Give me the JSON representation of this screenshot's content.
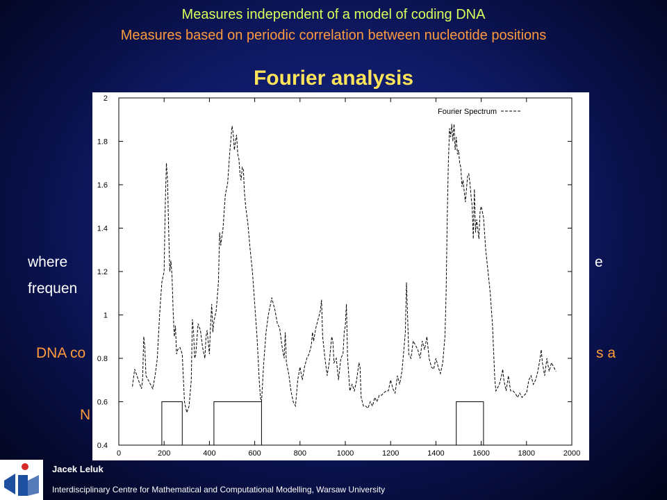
{
  "slide": {
    "header_line1": "Measures independent of a model of coding DNA",
    "header_line2": "Measures based on periodic correlation between nucleotide positions",
    "title": "Fourier analysis",
    "partial_text_1": "where ",
    "partial_text_1_suffix": "e",
    "partial_text_2": "frequen",
    "partial_text_3": "DNA co",
    "partial_text_3_suffix": "s a",
    "partial_text_4": "N",
    "footer_name": "Jacek Leluk",
    "footer_institution": "Interdisciplinary Centre for Mathematical and Computational Modelling, Warsaw University"
  },
  "colors": {
    "header_line1": "#d8ff5a",
    "header_line2": "#ff9a3c",
    "title": "#ffe45a",
    "logo_blue": "#1e4fa0",
    "logo_red": "#d62828"
  },
  "chart_data": {
    "type": "line",
    "title": "",
    "xlabel": "",
    "ylabel": "",
    "xlim": [
      0,
      2000
    ],
    "ylim": [
      0.4,
      2
    ],
    "x_ticks": [
      0,
      200,
      400,
      600,
      800,
      1000,
      1200,
      1400,
      1600,
      1800,
      2000
    ],
    "y_ticks": [
      0.4,
      0.6,
      0.8,
      1,
      1.2,
      1.4,
      1.6,
      1.8,
      2
    ],
    "legend": "top-right",
    "series": [
      {
        "name": "Fourier Spectrum",
        "style": "dashed",
        "points": [
          [
            60,
            0.67
          ],
          [
            70,
            0.75
          ],
          [
            80,
            0.72
          ],
          [
            90,
            0.69
          ],
          [
            100,
            0.66
          ],
          [
            105,
            0.7
          ],
          [
            110,
            0.9
          ],
          [
            115,
            0.85
          ],
          [
            120,
            0.72
          ],
          [
            130,
            0.7
          ],
          [
            140,
            0.68
          ],
          [
            150,
            0.66
          ],
          [
            160,
            0.72
          ],
          [
            170,
            0.8
          ],
          [
            180,
            1.0
          ],
          [
            190,
            1.15
          ],
          [
            200,
            1.2
          ],
          [
            205,
            1.5
          ],
          [
            210,
            1.7
          ],
          [
            215,
            1.62
          ],
          [
            220,
            1.4
          ],
          [
            225,
            1.2
          ],
          [
            230,
            1.25
          ],
          [
            235,
            1.18
          ],
          [
            240,
            1.02
          ],
          [
            245,
            0.9
          ],
          [
            250,
            0.95
          ],
          [
            255,
            0.82
          ],
          [
            260,
            0.84
          ],
          [
            270,
            0.85
          ],
          [
            280,
            0.82
          ],
          [
            290,
            0.6
          ],
          [
            300,
            0.55
          ],
          [
            310,
            0.58
          ],
          [
            320,
            0.7
          ],
          [
            325,
            0.98
          ],
          [
            330,
            0.92
          ],
          [
            335,
            0.8
          ],
          [
            340,
            0.82
          ],
          [
            350,
            0.96
          ],
          [
            360,
            0.93
          ],
          [
            370,
            0.85
          ],
          [
            380,
            0.8
          ],
          [
            385,
            0.9
          ],
          [
            390,
            0.93
          ],
          [
            395,
            0.87
          ],
          [
            400,
            0.82
          ],
          [
            405,
            0.95
          ],
          [
            410,
            1.05
          ],
          [
            415,
            0.92
          ],
          [
            420,
            0.97
          ],
          [
            430,
            1.02
          ],
          [
            440,
            1.15
          ],
          [
            445,
            1.38
          ],
          [
            450,
            1.32
          ],
          [
            455,
            1.36
          ],
          [
            460,
            1.4
          ],
          [
            470,
            1.55
          ],
          [
            475,
            1.58
          ],
          [
            480,
            1.6
          ],
          [
            490,
            1.75
          ],
          [
            500,
            1.87
          ],
          [
            505,
            1.84
          ],
          [
            510,
            1.76
          ],
          [
            515,
            1.8
          ],
          [
            520,
            1.83
          ],
          [
            525,
            1.74
          ],
          [
            530,
            1.72
          ],
          [
            535,
            1.65
          ],
          [
            540,
            1.62
          ],
          [
            545,
            1.68
          ],
          [
            550,
            1.67
          ],
          [
            555,
            1.56
          ],
          [
            560,
            1.5
          ],
          [
            570,
            1.42
          ],
          [
            580,
            1.3
          ],
          [
            590,
            1.2
          ],
          [
            600,
            1.05
          ],
          [
            610,
            0.9
          ],
          [
            620,
            0.7
          ],
          [
            625,
            0.62
          ],
          [
            630,
            0.6
          ],
          [
            640,
            0.78
          ],
          [
            650,
            0.92
          ],
          [
            660,
            1.0
          ],
          [
            670,
            1.05
          ],
          [
            675,
            1.08
          ],
          [
            680,
            1.06
          ],
          [
            690,
            1.02
          ],
          [
            700,
            0.96
          ],
          [
            710,
            0.94
          ],
          [
            720,
            0.86
          ],
          [
            730,
            0.8
          ],
          [
            735,
            0.92
          ],
          [
            740,
            0.78
          ],
          [
            750,
            0.73
          ],
          [
            760,
            0.65
          ],
          [
            770,
            0.6
          ],
          [
            780,
            0.58
          ],
          [
            790,
            0.7
          ],
          [
            800,
            0.76
          ],
          [
            810,
            0.7
          ],
          [
            820,
            0.76
          ],
          [
            830,
            0.8
          ],
          [
            840,
            0.82
          ],
          [
            850,
            0.86
          ],
          [
            855,
            0.92
          ],
          [
            860,
            0.88
          ],
          [
            870,
            0.94
          ],
          [
            880,
            0.98
          ],
          [
            890,
            1.02
          ],
          [
            895,
            1.07
          ],
          [
            900,
            0.9
          ],
          [
            910,
            0.8
          ],
          [
            920,
            0.72
          ],
          [
            930,
            0.79
          ],
          [
            940,
            0.9
          ],
          [
            945,
            0.88
          ],
          [
            950,
            0.78
          ],
          [
            960,
            0.8
          ],
          [
            970,
            0.7
          ],
          [
            980,
            0.8
          ],
          [
            990,
            0.82
          ],
          [
            995,
            0.92
          ],
          [
            1000,
            0.95
          ],
          [
            1005,
            1.05
          ],
          [
            1010,
            0.8
          ],
          [
            1020,
            0.65
          ],
          [
            1030,
            0.68
          ],
          [
            1040,
            0.65
          ],
          [
            1050,
            0.7
          ],
          [
            1060,
            0.78
          ],
          [
            1065,
            0.76
          ],
          [
            1070,
            0.62
          ],
          [
            1080,
            0.58
          ],
          [
            1090,
            0.58
          ],
          [
            1100,
            0.57
          ],
          [
            1110,
            0.6
          ],
          [
            1120,
            0.58
          ],
          [
            1130,
            0.62
          ],
          [
            1140,
            0.6
          ],
          [
            1150,
            0.63
          ],
          [
            1160,
            0.63
          ],
          [
            1170,
            0.64
          ],
          [
            1180,
            0.65
          ],
          [
            1190,
            0.65
          ],
          [
            1200,
            0.7
          ],
          [
            1210,
            0.66
          ],
          [
            1220,
            0.64
          ],
          [
            1230,
            0.72
          ],
          [
            1240,
            0.68
          ],
          [
            1250,
            0.74
          ],
          [
            1260,
            0.86
          ],
          [
            1265,
            0.92
          ],
          [
            1270,
            1.15
          ],
          [
            1275,
            1.0
          ],
          [
            1280,
            0.82
          ],
          [
            1290,
            0.8
          ],
          [
            1300,
            0.88
          ],
          [
            1310,
            0.86
          ],
          [
            1320,
            0.84
          ],
          [
            1330,
            0.8
          ],
          [
            1340,
            0.88
          ],
          [
            1350,
            0.84
          ],
          [
            1360,
            0.9
          ],
          [
            1370,
            0.8
          ],
          [
            1380,
            0.76
          ],
          [
            1390,
            0.75
          ],
          [
            1400,
            0.8
          ],
          [
            1410,
            0.76
          ],
          [
            1420,
            0.73
          ],
          [
            1430,
            0.78
          ],
          [
            1440,
            0.9
          ],
          [
            1445,
            1.1
          ],
          [
            1450,
            1.45
          ],
          [
            1455,
            1.7
          ],
          [
            1460,
            1.86
          ],
          [
            1465,
            1.82
          ],
          [
            1470,
            1.88
          ],
          [
            1475,
            1.8
          ],
          [
            1480,
            1.88
          ],
          [
            1485,
            1.76
          ],
          [
            1490,
            1.82
          ],
          [
            1495,
            1.74
          ],
          [
            1500,
            1.76
          ],
          [
            1505,
            1.7
          ],
          [
            1510,
            1.68
          ],
          [
            1515,
            1.59
          ],
          [
            1520,
            1.62
          ],
          [
            1530,
            1.52
          ],
          [
            1540,
            1.64
          ],
          [
            1545,
            1.65
          ],
          [
            1550,
            1.61
          ],
          [
            1555,
            1.55
          ],
          [
            1560,
            1.5
          ],
          [
            1565,
            1.35
          ],
          [
            1570,
            1.58
          ],
          [
            1575,
            1.38
          ],
          [
            1580,
            1.44
          ],
          [
            1590,
            1.35
          ],
          [
            1595,
            1.48
          ],
          [
            1600,
            1.5
          ],
          [
            1610,
            1.45
          ],
          [
            1620,
            1.3
          ],
          [
            1630,
            1.2
          ],
          [
            1640,
            1.1
          ],
          [
            1650,
            0.95
          ],
          [
            1660,
            0.7
          ],
          [
            1665,
            0.65
          ],
          [
            1670,
            0.66
          ],
          [
            1680,
            0.68
          ],
          [
            1690,
            0.72
          ],
          [
            1695,
            0.75
          ],
          [
            1700,
            0.7
          ],
          [
            1710,
            0.65
          ],
          [
            1720,
            0.72
          ],
          [
            1725,
            0.68
          ],
          [
            1730,
            0.65
          ],
          [
            1740,
            0.65
          ],
          [
            1750,
            0.64
          ],
          [
            1760,
            0.62
          ],
          [
            1770,
            0.64
          ],
          [
            1780,
            0.62
          ],
          [
            1790,
            0.63
          ],
          [
            1800,
            0.64
          ],
          [
            1810,
            0.7
          ],
          [
            1820,
            0.72
          ],
          [
            1830,
            0.68
          ],
          [
            1840,
            0.7
          ],
          [
            1850,
            0.74
          ],
          [
            1860,
            0.8
          ],
          [
            1865,
            0.84
          ],
          [
            1870,
            0.78
          ],
          [
            1880,
            0.72
          ],
          [
            1890,
            0.8
          ],
          [
            1900,
            0.74
          ],
          [
            1910,
            0.78
          ],
          [
            1920,
            0.76
          ],
          [
            1930,
            0.74
          ]
        ]
      },
      {
        "name": "",
        "style": "solid",
        "points": [
          [
            0,
            0.4
          ],
          [
            190,
            0.4
          ],
          [
            190,
            0.6
          ],
          [
            280,
            0.6
          ],
          [
            280,
            0.4
          ],
          [
            420,
            0.4
          ],
          [
            420,
            0.6
          ],
          [
            630,
            0.6
          ],
          [
            630,
            0.4
          ],
          [
            1490,
            0.4
          ],
          [
            1490,
            0.6
          ],
          [
            1610,
            0.6
          ],
          [
            1610,
            0.4
          ],
          [
            2000,
            0.4
          ]
        ]
      }
    ]
  }
}
